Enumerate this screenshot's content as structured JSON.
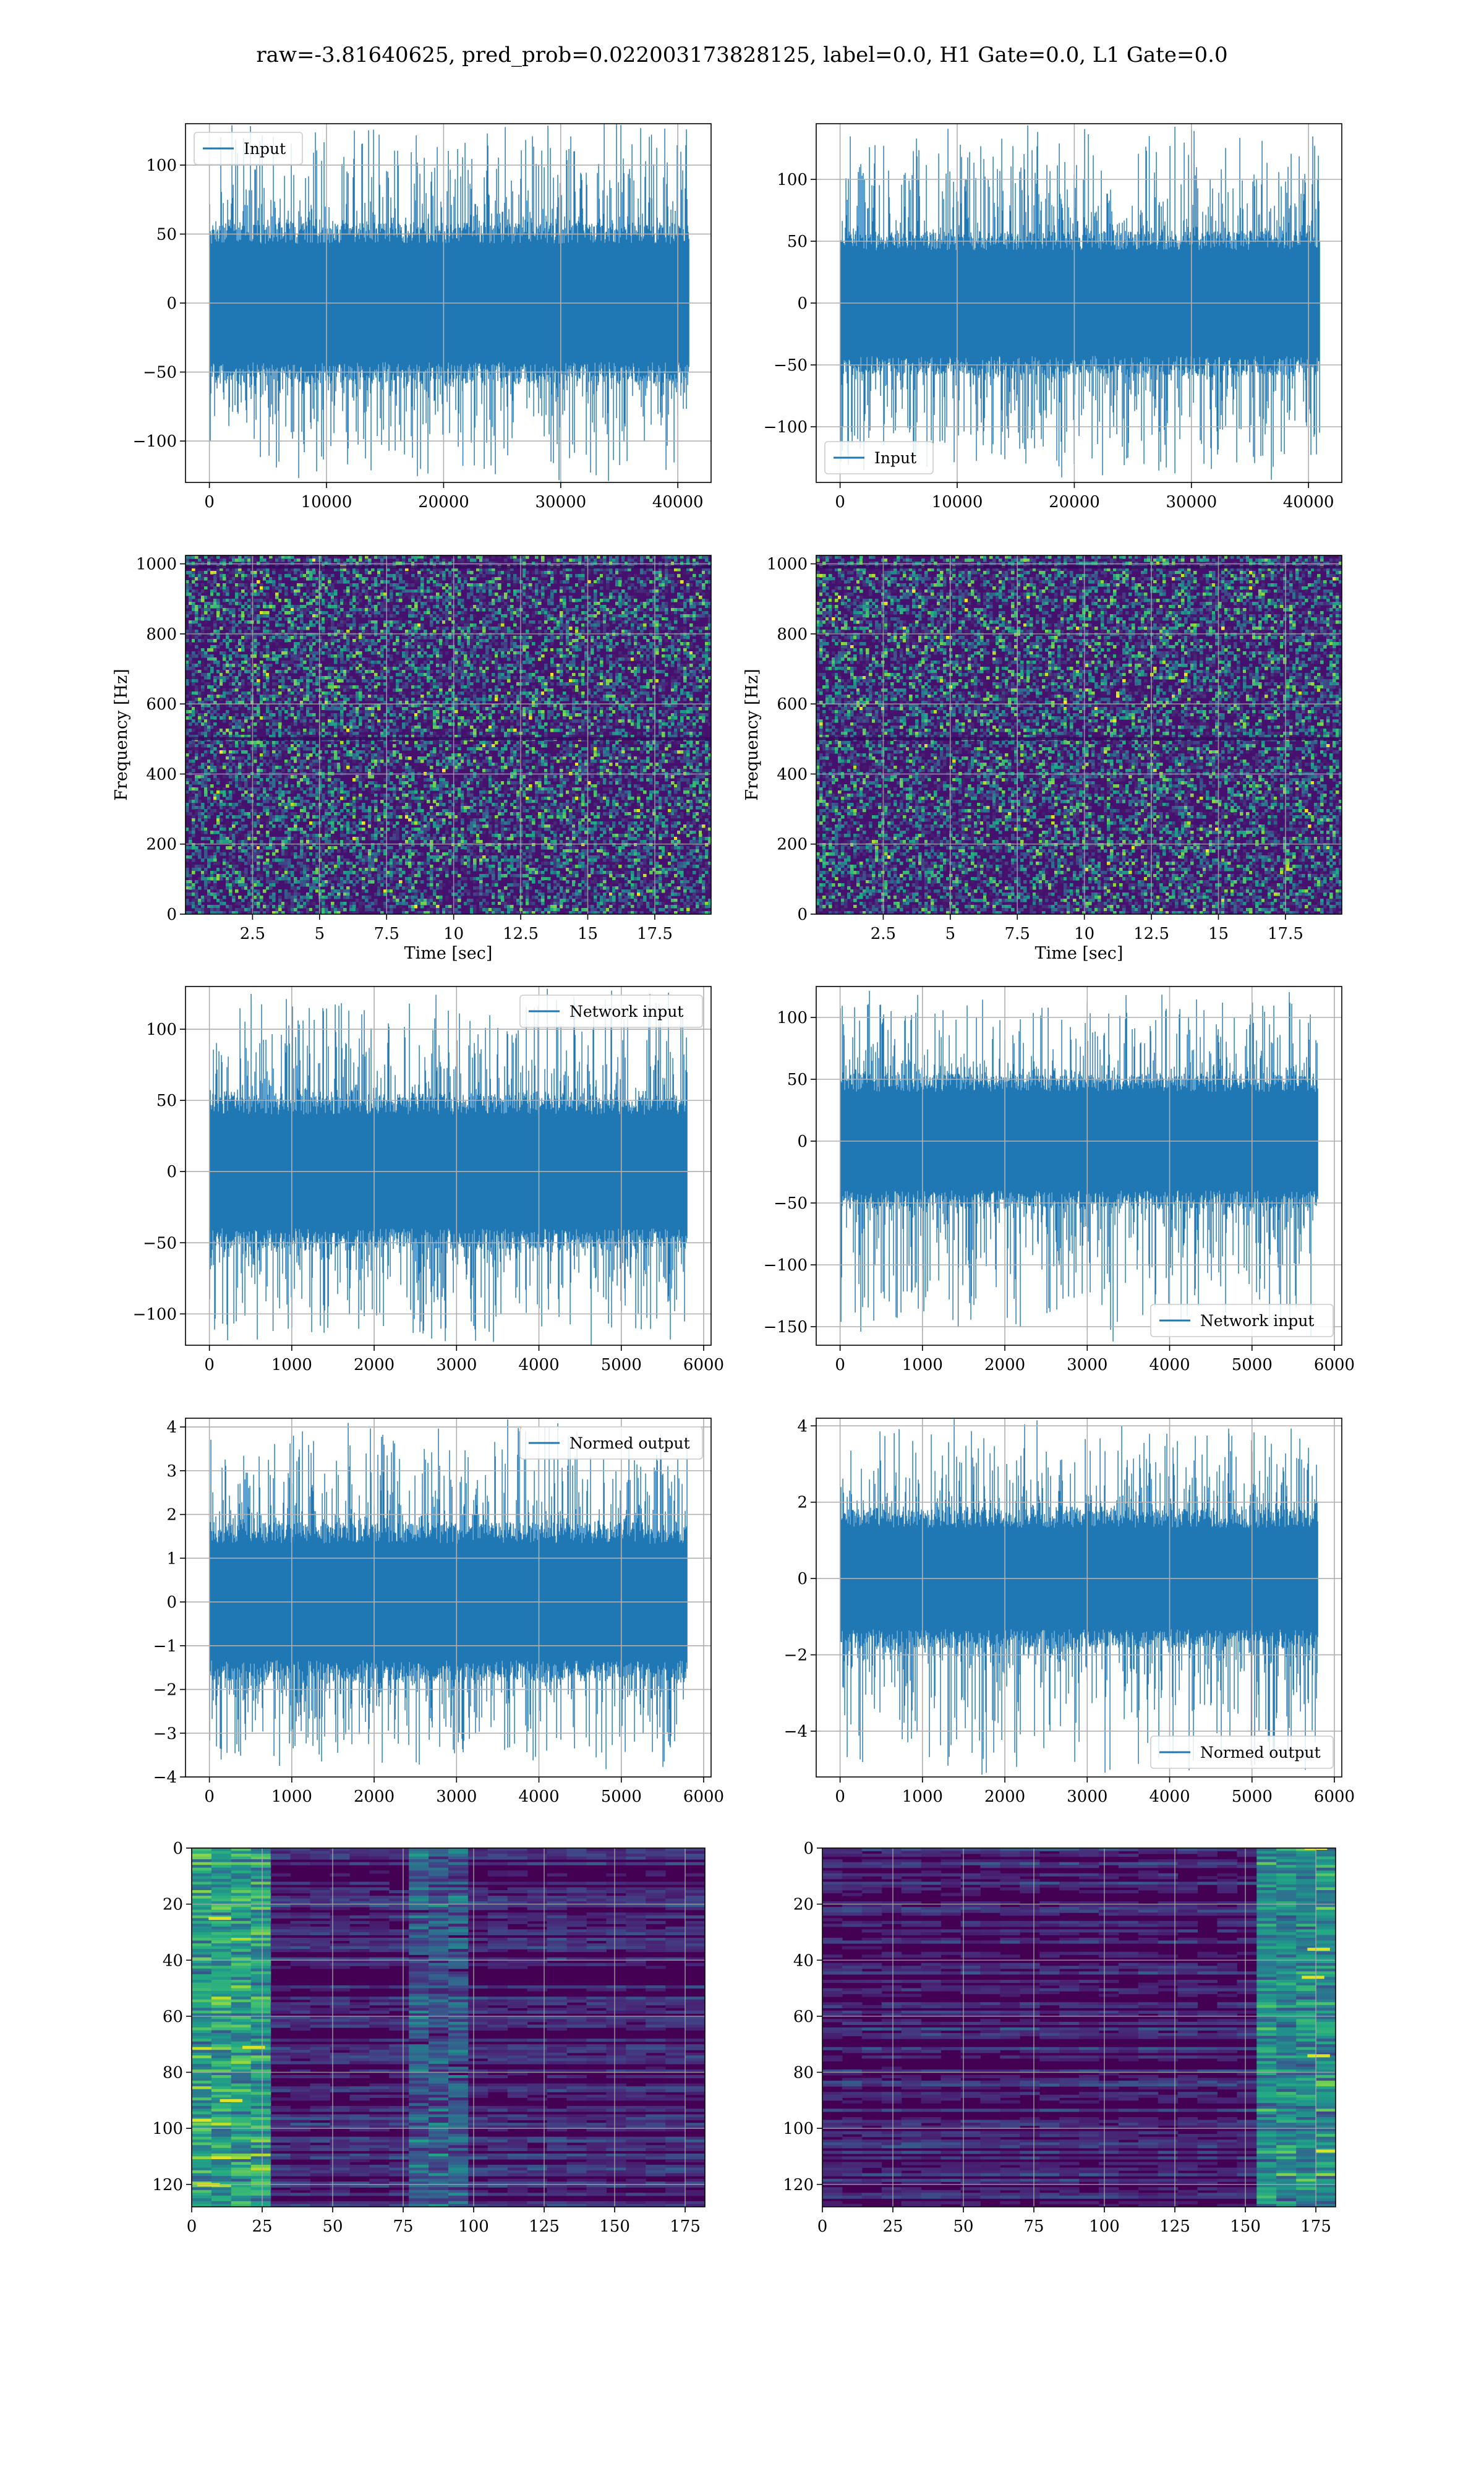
{
  "figure_title": "raw=-3.81640625, pred_prob=0.022003173828125, label=0.0, H1 Gate=0.0, L1 Gate=0.0",
  "colors": {
    "series": "#1f77b4",
    "grid": "#b0b0b0",
    "viridis": [
      "#440154",
      "#482475",
      "#414487",
      "#355f8d",
      "#2a788e",
      "#21918c",
      "#22a884",
      "#44bf70",
      "#7ad151",
      "#bddf26",
      "#fde725"
    ]
  },
  "chart_data": [
    {
      "id": "r1c1",
      "type": "line",
      "legend": "Input",
      "legend_loc": "upper left",
      "xlim": [
        -2040,
        42840
      ],
      "ylim": [
        -130,
        130
      ],
      "xticks": [
        0,
        10000,
        20000,
        30000,
        40000
      ],
      "yticks": [
        -100,
        -50,
        0,
        50,
        100
      ],
      "n": 40960,
      "core": 45,
      "max": 122,
      "min": -118,
      "xlabel": "",
      "ylabel": ""
    },
    {
      "id": "r1c2",
      "type": "line",
      "legend": "Input",
      "legend_loc": "lower left",
      "xlim": [
        -2040,
        42840
      ],
      "ylim": [
        -145,
        145
      ],
      "xticks": [
        0,
        10000,
        20000,
        30000,
        40000
      ],
      "yticks": [
        -100,
        -50,
        0,
        50,
        100
      ],
      "n": 40960,
      "core": 45,
      "max": 135,
      "min": -132,
      "xlabel": "",
      "ylabel": ""
    },
    {
      "id": "r2c1",
      "type": "heatmap",
      "xlim": [
        0,
        19.6
      ],
      "ylim": [
        0,
        1024
      ],
      "xticks": [
        2.5,
        5.0,
        7.5,
        10.0,
        12.5,
        15.0,
        17.5
      ],
      "yticks": [
        0,
        200,
        400,
        600,
        800,
        1000
      ],
      "xlabel": "Time [sec]",
      "ylabel": "Frequency [Hz]"
    },
    {
      "id": "r2c2",
      "type": "heatmap",
      "xlim": [
        0,
        19.6
      ],
      "ylim": [
        0,
        1024
      ],
      "xticks": [
        2.5,
        5.0,
        7.5,
        10.0,
        12.5,
        15.0,
        17.5
      ],
      "yticks": [
        0,
        200,
        400,
        600,
        800,
        1000
      ],
      "xlabel": "Time [sec]",
      "ylabel": "Frequency [Hz]"
    },
    {
      "id": "r3c1",
      "type": "line",
      "legend": "Network input",
      "legend_loc": "upper right",
      "xlim": [
        -290,
        6090
      ],
      "ylim": [
        -122,
        130
      ],
      "xticks": [
        0,
        1000,
        2000,
        3000,
        4000,
        5000,
        6000
      ],
      "yticks": [
        -100,
        -50,
        0,
        50,
        100
      ],
      "n": 5800,
      "core": 42,
      "max": 118,
      "min": -112,
      "xlabel": "",
      "ylabel": ""
    },
    {
      "id": "r3c2",
      "type": "line",
      "legend": "Network input",
      "legend_loc": "lower right",
      "xlim": [
        -290,
        6090
      ],
      "ylim": [
        -165,
        125
      ],
      "xticks": [
        0,
        1000,
        2000,
        3000,
        4000,
        5000,
        6000
      ],
      "yticks": [
        -150,
        -100,
        -50,
        0,
        50,
        100
      ],
      "n": 5800,
      "core": 42,
      "max": 112,
      "min": -150,
      "xlabel": "",
      "ylabel": ""
    },
    {
      "id": "r4c1",
      "type": "line",
      "legend": "Normed output",
      "legend_loc": "upper right",
      "xlim": [
        -290,
        6090
      ],
      "ylim": [
        -4.0,
        4.2
      ],
      "xticks": [
        0,
        1000,
        2000,
        3000,
        4000,
        5000,
        6000
      ],
      "yticks": [
        -4,
        -3,
        -2,
        -1,
        0,
        1,
        2,
        3,
        4
      ],
      "n": 5800,
      "core": 1.4,
      "max": 3.8,
      "min": -3.6,
      "xlabel": "",
      "ylabel": ""
    },
    {
      "id": "r4c2",
      "type": "line",
      "legend": "Normed output",
      "legend_loc": "lower right",
      "xlim": [
        -290,
        6090
      ],
      "ylim": [
        -5.2,
        4.2
      ],
      "xticks": [
        0,
        1000,
        2000,
        3000,
        4000,
        5000,
        6000
      ],
      "yticks": [
        -4,
        -2,
        0,
        2,
        4
      ],
      "n": 5800,
      "core": 1.4,
      "max": 3.8,
      "min": -4.9,
      "xlabel": "",
      "ylabel": ""
    },
    {
      "id": "r5c1",
      "type": "heatmap",
      "xlim": [
        0,
        182
      ],
      "ylim": [
        128,
        0
      ],
      "xticks": [
        0,
        25,
        50,
        75,
        100,
        125,
        150,
        175
      ],
      "yticks": [
        0,
        20,
        40,
        60,
        80,
        100,
        120
      ],
      "xlabel": "",
      "ylabel": ""
    },
    {
      "id": "r5c2",
      "type": "heatmap",
      "xlim": [
        0,
        182
      ],
      "ylim": [
        128,
        0
      ],
      "xticks": [
        0,
        25,
        50,
        75,
        100,
        125,
        150,
        175
      ],
      "yticks": [
        0,
        20,
        40,
        60,
        80,
        100,
        120
      ],
      "xlabel": "",
      "ylabel": ""
    }
  ]
}
